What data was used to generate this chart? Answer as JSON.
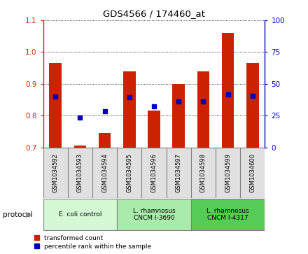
{
  "title": "GDS4566 / 174460_at",
  "samples": [
    "GSM1034592",
    "GSM1034593",
    "GSM1034594",
    "GSM1034595",
    "GSM1034596",
    "GSM1034597",
    "GSM1034598",
    "GSM1034599",
    "GSM1034600"
  ],
  "bar_bottom": 0.7,
  "transformed_count": [
    0.965,
    0.705,
    0.745,
    0.94,
    0.815,
    0.9,
    0.94,
    1.06,
    0.965
  ],
  "percentile_rank_left": [
    0.86,
    0.793,
    0.814,
    0.858,
    0.83,
    0.845,
    0.845,
    0.866,
    0.863
  ],
  "ylim_left": [
    0.7,
    1.1
  ],
  "ylim_right": [
    0,
    100
  ],
  "yticks_left": [
    0.7,
    0.8,
    0.9,
    1.0,
    1.1
  ],
  "yticks_right": [
    0,
    25,
    50,
    75,
    100
  ],
  "bar_color": "#cc2200",
  "dot_color": "#0000bb",
  "bar_width": 0.5,
  "groups": [
    {
      "label": "E. coli control",
      "start": 0,
      "end": 3,
      "color": "#d4f7d4"
    },
    {
      "label": "L. rhamnosus\nCNCM I-3690",
      "start": 3,
      "end": 6,
      "color": "#aaeaaa"
    },
    {
      "label": "L. rhamnosus\nCNCM I-4317",
      "start": 6,
      "end": 9,
      "color": "#55cc55"
    }
  ],
  "legend_items": [
    {
      "label": "transformed count",
      "color": "#cc2200"
    },
    {
      "label": "percentile rank within the sample",
      "color": "#0000bb"
    }
  ],
  "tick_label_color_left": "#cc2200",
  "tick_label_color_right": "#0000bb",
  "protocol_label": "protocol"
}
